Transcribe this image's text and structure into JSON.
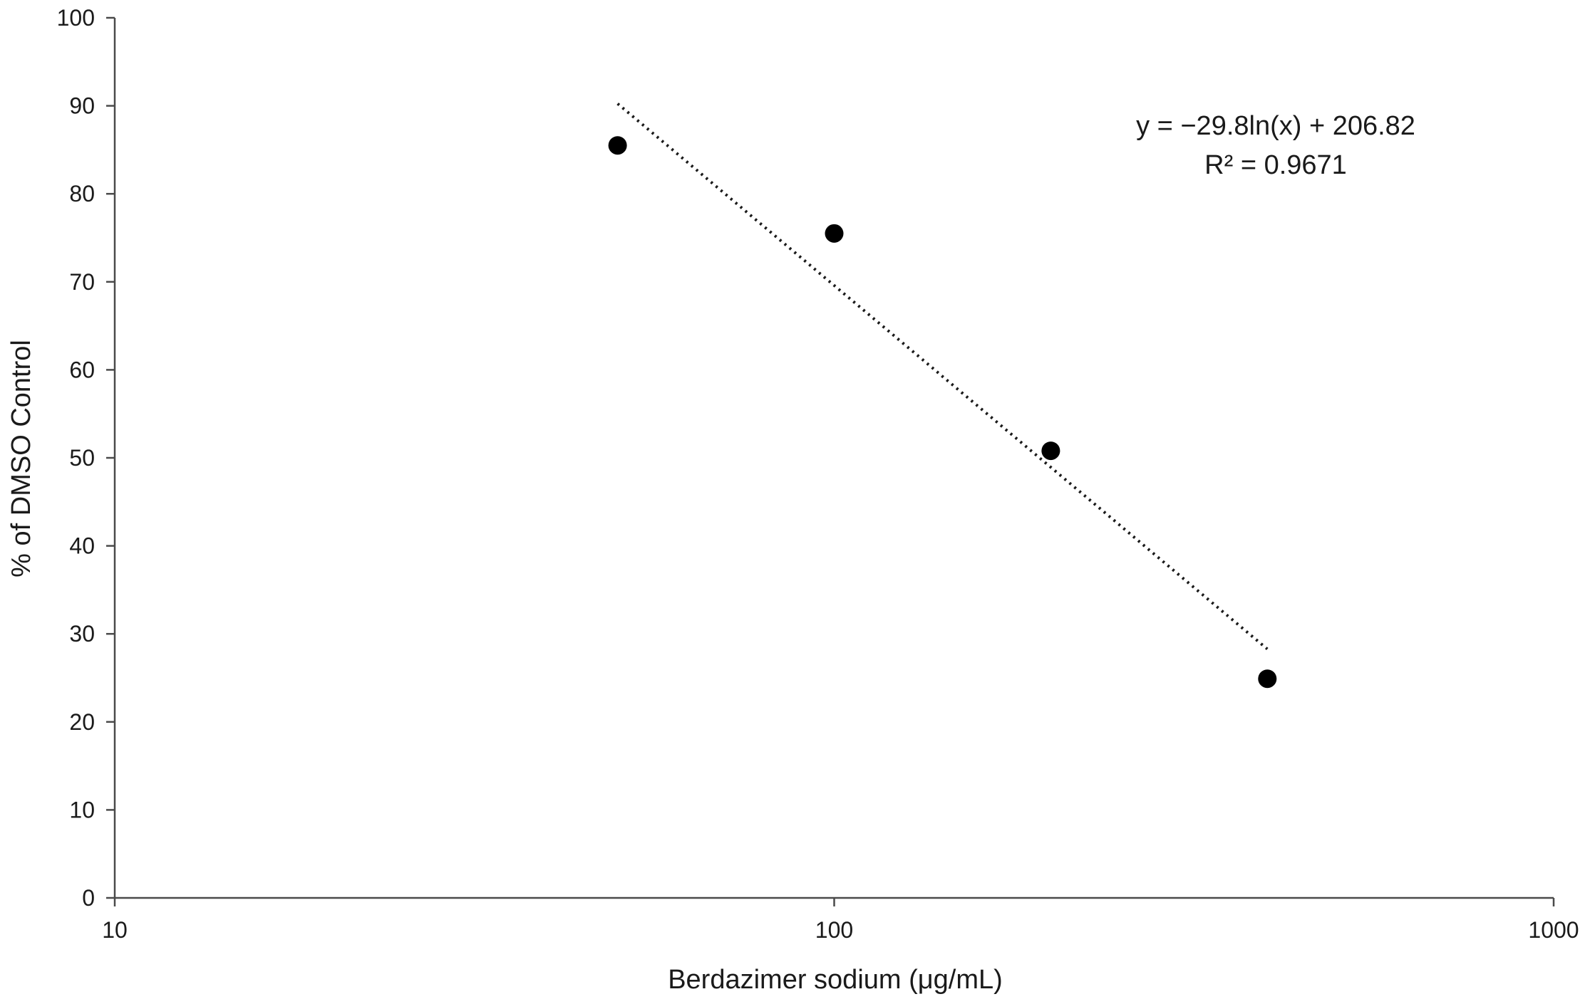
{
  "chart_data": {
    "type": "scatter",
    "title": "",
    "xlabel": "Berdazimer sodium (μg/mL)",
    "ylabel": "% of  DMSO Control",
    "x_scale": "log",
    "xlim": [
      10,
      1000
    ],
    "ylim": [
      0,
      100
    ],
    "x_ticks": [
      "10",
      "100",
      "1000"
    ],
    "y_ticks": [
      "0",
      "10",
      "20",
      "30",
      "40",
      "50",
      "60",
      "70",
      "80",
      "90",
      "100"
    ],
    "grid": false,
    "legend": "none",
    "points": [
      {
        "x": 50,
        "y": 85.5
      },
      {
        "x": 100,
        "y": 75.5
      },
      {
        "x": 200,
        "y": 50.8
      },
      {
        "x": 400,
        "y": 24.9
      }
    ],
    "trendline": {
      "type": "logarithmic",
      "slope": -29.8,
      "intercept": 206.82,
      "x_range": [
        50,
        400
      ],
      "equation": "y = −29.8ln(x) + 206.82",
      "r_squared": "R² = 0.9671"
    },
    "colors": {
      "points": "#000000",
      "axis": "#4a4a4a",
      "trendline": "#1a1a1a"
    }
  }
}
